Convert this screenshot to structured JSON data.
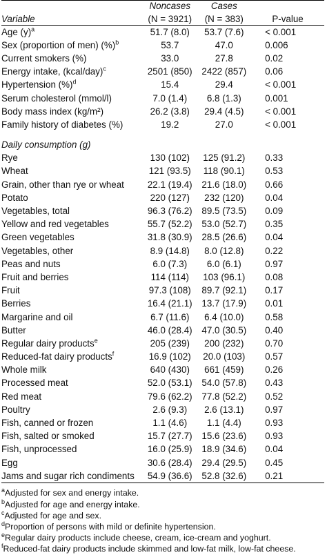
{
  "header": {
    "variable": "Variable",
    "noncases_title": "Noncases",
    "noncases_n": "(N = 3921)",
    "cases_title": "Cases",
    "cases_n": "(N = 383)",
    "pvalue": "P-value"
  },
  "rows": [
    {
      "label": "Age (y)",
      "sup": "a",
      "noncases": "51.7 (8.0)",
      "cases": "53.7 (7.6)",
      "p": "< 0.001"
    },
    {
      "label": "Sex (proportion of men) (%)",
      "sup": "b",
      "noncases": "53.7",
      "cases": "47.0",
      "p": "0.006"
    },
    {
      "label": "Current smokers (%)",
      "sup": "",
      "noncases": "33.0",
      "cases": "27.8",
      "p": "0.02"
    },
    {
      "label": "Energy intake, (kcal/day)",
      "sup": "c",
      "noncases": "2501 (850)",
      "cases": "2422 (857)",
      "p": "0.06"
    },
    {
      "label": "Hypertension (%)",
      "sup": "d",
      "noncases": "15.4",
      "cases": "29.4",
      "p": "< 0.001"
    },
    {
      "label": "Serum cholesterol (mmol/l)",
      "sup": "",
      "noncases": "7.0 (1.4)",
      "cases": "6.8 (1.3)",
      "p": "0.001"
    },
    {
      "label": "Body mass index (kg/m²)",
      "sup": "",
      "noncases": "26.2 (3.8)",
      "cases": "29.4 (4.5)",
      "p": "< 0.001"
    },
    {
      "label": "Family history of diabetes (%)",
      "sup": "",
      "noncases": "19.2",
      "cases": "27.0",
      "p": "< 0.001"
    }
  ],
  "section_label": "Daily consumption (g)",
  "consumption_rows": [
    {
      "label": "Rye",
      "sup": "",
      "noncases": "130 (102)",
      "cases": "125 (91.2)",
      "p": "0.33"
    },
    {
      "label": "Wheat",
      "sup": "",
      "noncases": "121 (93.5)",
      "cases": "118 (90.1)",
      "p": "0.53"
    },
    {
      "label": "Grain, other than rye or wheat",
      "sup": "",
      "noncases": "22.1 (19.4)",
      "cases": "21.6 (18.0)",
      "p": "0.66"
    },
    {
      "label": "Potato",
      "sup": "",
      "noncases": "220 (127)",
      "cases": "232 (120)",
      "p": "0.04"
    },
    {
      "label": "Vegetables, total",
      "sup": "",
      "noncases": "96.3 (76.2)",
      "cases": "89.5 (73.5)",
      "p": "0.09"
    },
    {
      "label": "Yellow and red vegetables",
      "sup": "",
      "noncases": "55.7 (52.2)",
      "cases": "53.0 (52.7)",
      "p": "0.35"
    },
    {
      "label": "Green vegetables",
      "sup": "",
      "noncases": "31.8 (30.9)",
      "cases": "28.5 (26.6)",
      "p": "0.04"
    },
    {
      "label": "Vegetables, other",
      "sup": "",
      "noncases": "8.9 (14.8)",
      "cases": "8.0 (12.8)",
      "p": "0.22"
    },
    {
      "label": "Peas and nuts",
      "sup": "",
      "noncases": "6.0 (7.3)",
      "cases": "6.0 (6.1)",
      "p": "0.97"
    },
    {
      "label": "Fruit and berries",
      "sup": "",
      "noncases": "114 (114)",
      "cases": "103 (96.1)",
      "p": "0.08"
    },
    {
      "label": "Fruit",
      "sup": "",
      "noncases": "97.3 (108)",
      "cases": "89.7 (92.1)",
      "p": "0.17"
    },
    {
      "label": "Berries",
      "sup": "",
      "noncases": "16.4 (21.1)",
      "cases": "13.7 (17.9)",
      "p": "0.01"
    },
    {
      "label": "Margarine and oil",
      "sup": "",
      "noncases": "6.7 (11.6)",
      "cases": "6.4 (10.0)",
      "p": "0.58"
    },
    {
      "label": "Butter",
      "sup": "",
      "noncases": "46.0 (28.4)",
      "cases": "47.0 (30.5)",
      "p": "0.40"
    },
    {
      "label": "Regular dairy products",
      "sup": "e",
      "noncases": "205 (239)",
      "cases": "200 (232)",
      "p": "0.70"
    },
    {
      "label": "Reduced-fat dairy products",
      "sup": "f",
      "noncases": "16.9 (102)",
      "cases": "20.0 (103)",
      "p": "0.57"
    },
    {
      "label": "Whole milk",
      "sup": "",
      "noncases": "640 (430)",
      "cases": "661 (459)",
      "p": "0.26"
    },
    {
      "label": "Processed meat",
      "sup": "",
      "noncases": "52.0 (53.1)",
      "cases": "54.0 (57.8)",
      "p": "0.43"
    },
    {
      "label": "Red meat",
      "sup": "",
      "noncases": "79.6 (62.2)",
      "cases": "77.8 (52.2)",
      "p": "0.52"
    },
    {
      "label": "Poultry",
      "sup": "",
      "noncases": "2.6 (9.3)",
      "cases": "2.6 (13.1)",
      "p": "0.97"
    },
    {
      "label": "Fish, canned or frozen",
      "sup": "",
      "noncases": "1.1 (4.6)",
      "cases": "1.1 (4.4)",
      "p": "0.93"
    },
    {
      "label": "Fish, salted or smoked",
      "sup": "",
      "noncases": "15.7 (27.7)",
      "cases": "15.6 (23.6)",
      "p": "0.93"
    },
    {
      "label": "Fish, unprocessed",
      "sup": "",
      "noncases": "16.0 (25.9)",
      "cases": "18.9 (34.6)",
      "p": "0.04"
    },
    {
      "label": "Egg",
      "sup": "",
      "noncases": "30.6 (28.4)",
      "cases": "29.4 (29.5)",
      "p": "0.45"
    },
    {
      "label": "Jams and sugar rich condiments",
      "sup": "",
      "noncases": "54.9 (36.6)",
      "cases": "52.8 (32.6)",
      "p": "0.21"
    }
  ],
  "footnotes": [
    {
      "mark": "a",
      "text": "Adjusted for sex and energy intake."
    },
    {
      "mark": "b",
      "text": "Adjusted for age and energy intake."
    },
    {
      "mark": "c",
      "text": "Adjusted for age and sex."
    },
    {
      "mark": "d",
      "text": "Proportion of persons with mild or definite hypertension."
    },
    {
      "mark": "e",
      "text": "Regular dairy products include cheese, cream, ice-cream and yoghurt."
    },
    {
      "mark": "f",
      "text": "Reduced-fat dairy products include skimmed and low-fat milk, low-fat cheese."
    }
  ]
}
